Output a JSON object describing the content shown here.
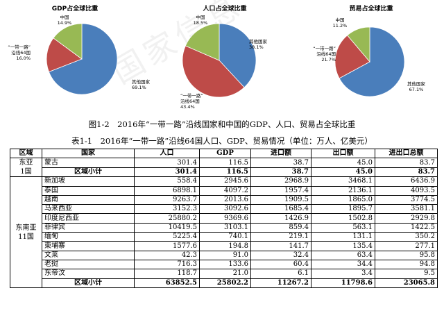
{
  "charts": [
    {
      "title": "GDP占全球比重",
      "slices": [
        {
          "name": "其他国家",
          "value": 69.1,
          "pct": "69.1%",
          "color": "#4a7ebb"
        },
        {
          "name": "“一带一路”沿线64国",
          "value": 16.0,
          "pct": "16.0%",
          "color": "#be4b48"
        },
        {
          "name": "中国",
          "value": 14.9,
          "pct": "14.9%",
          "color": "#98b954"
        }
      ]
    },
    {
      "title": "人口占全球比重",
      "slices": [
        {
          "name": "其他国家",
          "value": 38.1,
          "pct": "38.1%",
          "color": "#4a7ebb"
        },
        {
          "name": "“一带一路”沿线64国",
          "value": 43.4,
          "pct": "43.4%",
          "color": "#be4b48"
        },
        {
          "name": "中国",
          "value": 18.5,
          "pct": "18.5%",
          "color": "#98b954"
        }
      ]
    },
    {
      "title": "贸易占全球比重",
      "slices": [
        {
          "name": "其他国家",
          "value": 67.1,
          "pct": "67.1%",
          "color": "#4a7ebb"
        },
        {
          "name": "“一带一路”沿线64国",
          "value": 21.7,
          "pct": "21.7%",
          "color": "#be4b48"
        },
        {
          "name": "中国",
          "value": 11.2,
          "pct": "11.2%",
          "color": "#98b954"
        }
      ]
    }
  ],
  "figure_caption": "图1-2　2016年“一带一路”沿线国家和中国的GDP、人口、贸易占全球比重",
  "table_caption": "表1-1　2016年“一带一路”沿线64国人口、GDP、贸易情况（单位：万人、亿美元）",
  "table": {
    "headers": [
      "区域",
      "国家",
      "人口",
      "GDP",
      "进口额",
      "出口额",
      "进出口总额"
    ],
    "groups": [
      {
        "region_lines": [
          "东亚",
          "1国"
        ],
        "rows": [
          {
            "country": "蒙古",
            "values": [
              "301.4",
              "116.5",
              "38.7",
              "45.0",
              "83.7"
            ]
          },
          {
            "country": "区域小计",
            "subtotal": true,
            "values": [
              "301.4",
              "116.5",
              "38.7",
              "45.0",
              "83.7"
            ]
          }
        ]
      },
      {
        "region_lines": [
          "东南亚",
          "11国"
        ],
        "rows": [
          {
            "country": "新加坡",
            "values": [
              "558.4",
              "2945.6",
              "2968.9",
              "3468.1",
              "6436.9"
            ]
          },
          {
            "country": "泰国",
            "values": [
              "6898.1",
              "4097.2",
              "1957.4",
              "2136.1",
              "4093.5"
            ]
          },
          {
            "country": "越南",
            "values": [
              "9263.7",
              "2013.6",
              "1909.5",
              "1865.0",
              "3774.5"
            ]
          },
          {
            "country": "马来西亚",
            "values": [
              "3152.3",
              "3092.6",
              "1685.4",
              "1895.7",
              "3581.1"
            ]
          },
          {
            "country": "印度尼西亚",
            "values": [
              "25880.2",
              "9369.6",
              "1426.9",
              "1502.8",
              "2929.8"
            ]
          },
          {
            "country": "菲律宾",
            "values": [
              "10419.5",
              "3103.1",
              "859.4",
              "563.1",
              "1422.5"
            ]
          },
          {
            "country": "缅甸",
            "values": [
              "5225.4",
              "740.1",
              "219.1",
              "131.1",
              "350.2"
            ]
          },
          {
            "country": "柬埔寨",
            "values": [
              "1577.6",
              "194.8",
              "141.7",
              "135.4",
              "277.1"
            ]
          },
          {
            "country": "文莱",
            "values": [
              "42.3",
              "91.0",
              "32.4",
              "63.4",
              "95.8"
            ]
          },
          {
            "country": "老挝",
            "values": [
              "716.3",
              "133.6",
              "60.4",
              "34.4",
              "94.8"
            ]
          },
          {
            "country": "东帝汶",
            "values": [
              "118.7",
              "21.0",
              "6.1",
              "3.4",
              "9.5"
            ]
          },
          {
            "country": "区域小计",
            "subtotal": true,
            "values": [
              "63852.5",
              "25802.2",
              "11267.2",
              "11798.6",
              "23065.8"
            ]
          }
        ]
      }
    ]
  }
}
